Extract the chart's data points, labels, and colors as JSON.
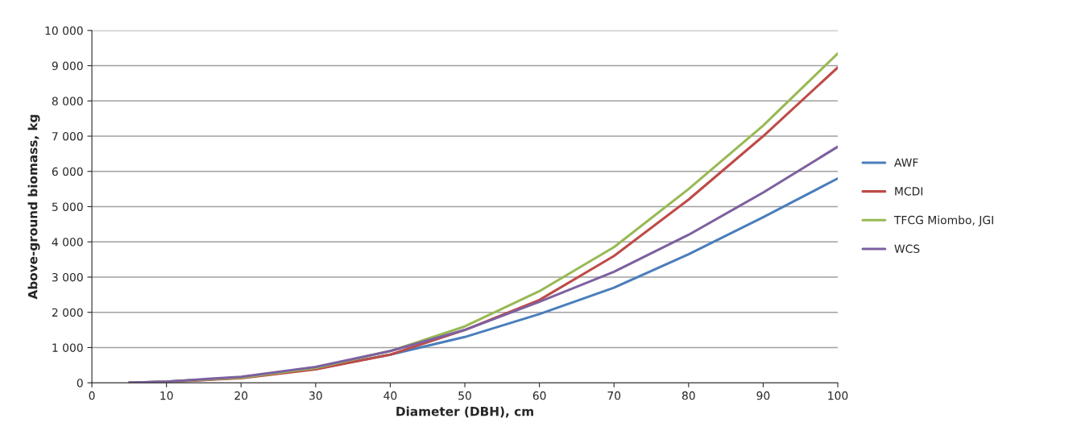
{
  "chart_data": {
    "type": "line",
    "xlabel": "Diameter (DBH), cm",
    "ylabel": "Above-ground biomass, kg",
    "x": [
      5,
      10,
      20,
      30,
      40,
      50,
      60,
      70,
      80,
      90,
      100
    ],
    "series": [
      {
        "name": "AWF",
        "color": "#4a7ebb",
        "values": [
          5,
          30,
          150,
          400,
          800,
          1300,
          1950,
          2700,
          3650,
          4700,
          5800
        ]
      },
      {
        "name": "MCDI",
        "color": "#be4b48",
        "values": [
          5,
          25,
          130,
          380,
          800,
          1500,
          2350,
          3600,
          5200,
          7000,
          8950
        ]
      },
      {
        "name": "TFCG Miombo, JGI",
        "color": "#98b954",
        "values": [
          5,
          30,
          150,
          420,
          900,
          1600,
          2600,
          3850,
          5500,
          7300,
          9350
        ]
      },
      {
        "name": "WCS",
        "color": "#7d60a0",
        "values": [
          5,
          35,
          170,
          450,
          900,
          1500,
          2300,
          3150,
          4200,
          5400,
          6700
        ]
      }
    ],
    "xlim": [
      0,
      100
    ],
    "xticks": [
      0,
      10,
      20,
      30,
      40,
      50,
      60,
      70,
      80,
      90,
      100
    ],
    "ylim": [
      0,
      10000
    ],
    "yticks": [
      0,
      {
        "value": 1000,
        "label": "1 000"
      },
      {
        "value": 2000,
        "label": "2 000"
      },
      {
        "value": 3000,
        "label": "3 000"
      },
      {
        "value": 4000,
        "label": "4 000"
      },
      {
        "value": 5000,
        "label": "5 000"
      },
      {
        "value": 6000,
        "label": "6 000"
      },
      {
        "value": 7000,
        "label": "7 000"
      },
      {
        "value": 8000,
        "label": "8 000"
      },
      {
        "value": 9000,
        "label": "9 000"
      },
      {
        "value": 10000,
        "label": "10 000"
      }
    ],
    "grid": "y",
    "legend": "right",
    "marker": "none",
    "line_style": "solid"
  }
}
